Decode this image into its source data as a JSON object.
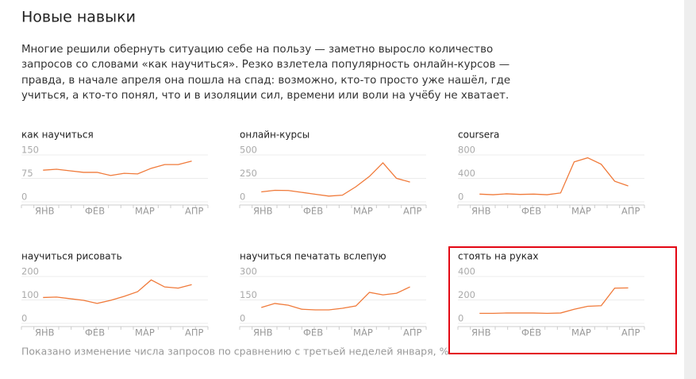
{
  "title": "Новые навыки",
  "description_lines": [
    "Многие решили обернуть ситуацию себе на пользу — заметно выросло количество",
    "запросов со словами «как научиться». Резко взлетела популярность онлайн-курсов —",
    "правда, в начале апреля она пошла на спад: возможно, кто-то просто уже нашёл, где",
    "учиться, а кто-то понял, что и в изоляции сил, времени или воли на учёбу не хватает."
  ],
  "footnote": "Показано изменение числа запросов по сравнению с третьей неделей января, %",
  "chart_data": [
    {
      "type": "line",
      "title": "как научиться",
      "color": "#f07a3a",
      "x": [
        0,
        1,
        2,
        3,
        4,
        5,
        6,
        7,
        8,
        9,
        10,
        11
      ],
      "values": [
        86,
        89,
        84,
        79,
        79,
        69,
        76,
        74,
        92,
        104,
        104,
        115
      ],
      "xlim": [
        -1.6,
        12.2
      ],
      "xticks": [
        {
          "value": -0.6,
          "label": "ЯНВ"
        },
        {
          "value": 3.1,
          "label": "ФЕВ"
        },
        {
          "value": 6.8,
          "label": "МАР"
        },
        {
          "value": 10.5,
          "label": "АПР"
        }
      ],
      "ylim": [
        0,
        150
      ],
      "yticks": [
        0,
        75,
        150
      ],
      "grid": true
    },
    {
      "type": "line",
      "title": "онлайн-курсы",
      "color": "#f07a3a",
      "x": [
        0,
        1,
        2,
        3,
        4,
        5,
        6,
        7,
        8,
        9,
        10,
        11
      ],
      "values": [
        55,
        72,
        70,
        50,
        30,
        10,
        20,
        110,
        220,
        365,
        200,
        160
      ],
      "xlim": [
        -1.6,
        12.2
      ],
      "xticks": [
        {
          "value": -0.6,
          "label": "ЯНВ"
        },
        {
          "value": 3.1,
          "label": "ФЕВ"
        },
        {
          "value": 6.8,
          "label": "МАР"
        },
        {
          "value": 10.5,
          "label": "АПР"
        }
      ],
      "ylim": [
        0,
        500
      ],
      "yticks": [
        0,
        250,
        500
      ],
      "grid": true
    },
    {
      "type": "line",
      "title": "coursera",
      "color": "#f07a3a",
      "x": [
        0,
        1,
        2,
        3,
        4,
        5,
        6,
        7,
        8,
        9,
        10,
        11
      ],
      "values": [
        50,
        40,
        55,
        45,
        50,
        40,
        70,
        600,
        670,
        560,
        270,
        190
      ],
      "xlim": [
        -1.6,
        12.2
      ],
      "xticks": [
        {
          "value": -0.6,
          "label": "ЯНВ"
        },
        {
          "value": 3.1,
          "label": "ФЕВ"
        },
        {
          "value": 6.8,
          "label": "МАР"
        },
        {
          "value": 10.5,
          "label": "АПР"
        }
      ],
      "ylim": [
        0,
        800
      ],
      "yticks": [
        0,
        400,
        800
      ],
      "grid": true
    },
    {
      "type": "line",
      "title": "научиться рисовать",
      "color": "#f07a3a",
      "x": [
        0,
        1,
        2,
        3,
        4,
        5,
        6,
        7,
        8,
        9,
        10,
        11
      ],
      "values": [
        90,
        92,
        85,
        78,
        65,
        78,
        95,
        115,
        165,
        135,
        130,
        145
      ],
      "xlim": [
        -1.6,
        12.2
      ],
      "xticks": [
        {
          "value": -0.6,
          "label": "ЯНВ"
        },
        {
          "value": 3.1,
          "label": "ФЕВ"
        },
        {
          "value": 6.8,
          "label": "МАР"
        },
        {
          "value": 10.5,
          "label": "АПР"
        }
      ],
      "ylim": [
        0,
        200
      ],
      "yticks": [
        0,
        100,
        200
      ],
      "grid": true
    },
    {
      "type": "line",
      "title": "научиться печатать вслепую",
      "color": "#f07a3a",
      "x": [
        0,
        1,
        2,
        3,
        4,
        5,
        6,
        7,
        8,
        9,
        10,
        11
      ],
      "values": [
        71,
        97,
        86,
        60,
        56,
        56,
        66,
        81,
        168,
        152,
        162,
        203
      ],
      "xlim": [
        -1.6,
        12.2
      ],
      "xticks": [
        {
          "value": -0.6,
          "label": "ЯНВ"
        },
        {
          "value": 3.1,
          "label": "ФЕВ"
        },
        {
          "value": 6.8,
          "label": "МАР"
        },
        {
          "value": 10.5,
          "label": "АПР"
        }
      ],
      "ylim": [
        0,
        300
      ],
      "yticks": [
        0,
        150,
        300
      ],
      "grid": true
    },
    {
      "type": "line",
      "title": "стоять на руках",
      "color": "#f07a3a",
      "x": [
        0,
        1,
        2,
        3,
        4,
        5,
        6,
        7,
        8,
        9,
        10,
        11
      ],
      "values": [
        45,
        45,
        48,
        48,
        48,
        45,
        48,
        80,
        105,
        110,
        260,
        262
      ],
      "xlim": [
        -1.6,
        12.2
      ],
      "xticks": [
        {
          "value": -0.6,
          "label": "ЯНВ"
        },
        {
          "value": 3.1,
          "label": "ФЕВ"
        },
        {
          "value": 6.8,
          "label": "МАР"
        },
        {
          "value": 10.5,
          "label": "АПР"
        }
      ],
      "ylim": [
        0,
        400
      ],
      "yticks": [
        0,
        200,
        400
      ],
      "grid": true
    }
  ]
}
